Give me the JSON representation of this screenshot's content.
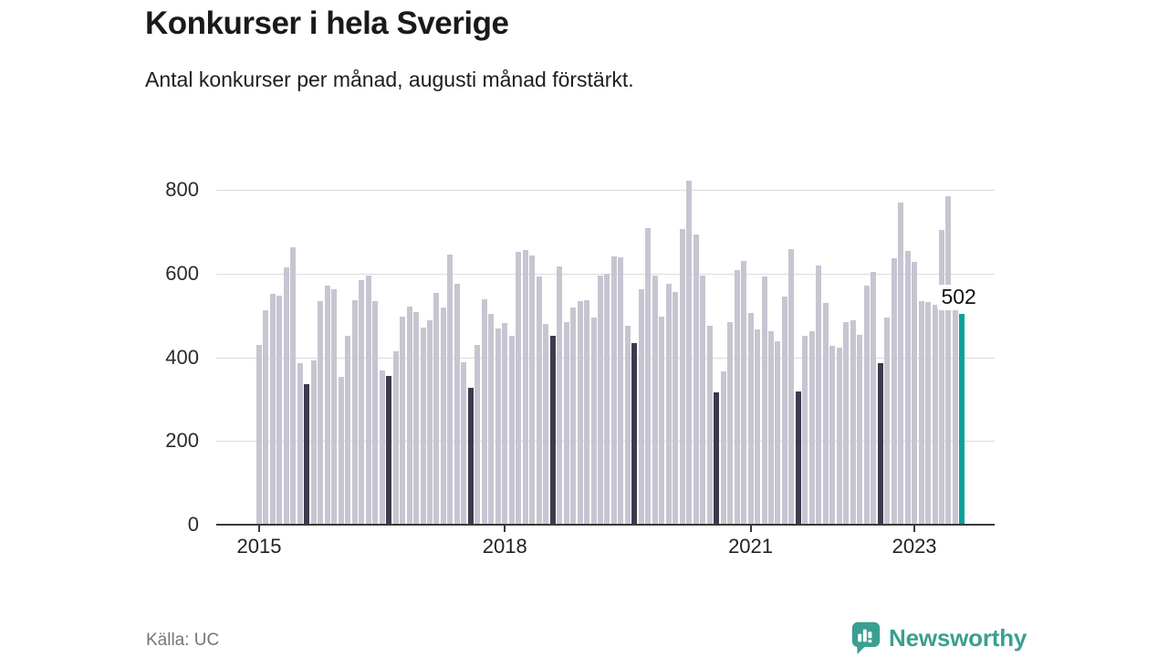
{
  "title": "Konkurser i hela Sverige",
  "subtitle": "Antal konkurser per månad, augusti månad förstärkt.",
  "source": "Källa: UC",
  "logo": {
    "text": "Newsworthy",
    "color": "#3a9f92"
  },
  "chart_data": {
    "type": "bar",
    "title": "Konkurser i hela Sverige",
    "subtitle": "Antal konkurser per månad, augusti månad förstärkt.",
    "xlabel": "",
    "ylabel": "",
    "ylim": [
      0,
      800
    ],
    "yticks": [
      0,
      200,
      400,
      600,
      800
    ],
    "grid": true,
    "x_start_month": "2015-01",
    "x_end_month": "2023-08",
    "x_tick_labels": [
      "2015",
      "2018",
      "2021",
      "2023"
    ],
    "x_tick_month_index": [
      0,
      36,
      72,
      96
    ],
    "series": [
      {
        "name": "Antal konkurser per månad",
        "values": [
          427,
          510,
          549,
          544,
          612,
          660,
          384,
          334,
          391,
          531,
          568,
          560,
          351,
          449,
          535,
          582,
          593,
          531,
          367,
          353,
          411,
          494,
          518,
          505,
          469,
          486,
          551,
          516,
          642,
          573,
          385,
          324,
          427,
          536,
          501,
          466,
          479,
          448,
          649,
          655,
          640,
          590,
          477,
          450,
          615,
          481,
          517,
          532,
          535,
          492,
          594,
          597,
          639,
          636,
          474,
          432,
          561,
          707,
          594,
          495,
          573,
          554,
          705,
          820,
          690,
          594,
          474,
          313,
          364,
          481,
          605,
          628,
          503,
          464,
          590,
          460,
          437,
          543,
          656,
          317,
          448,
          461,
          616,
          528,
          426,
          421,
          481,
          487,
          452,
          568,
          601,
          384,
          492,
          635,
          767,
          651,
          626,
          532,
          530,
          523,
          703,
          783,
          510,
          502
        ]
      }
    ],
    "colors": {
      "default_bar": "#c7c5d1",
      "august_bar": "#3b3b4e",
      "latest_bar": "#0ca198",
      "gridline": "#dbdbdb",
      "axis": "#3a3a3a"
    },
    "august_rule": "every month index where index % 12 == 7 is colored august_bar",
    "highlight": {
      "index": 103,
      "label": "502"
    }
  }
}
